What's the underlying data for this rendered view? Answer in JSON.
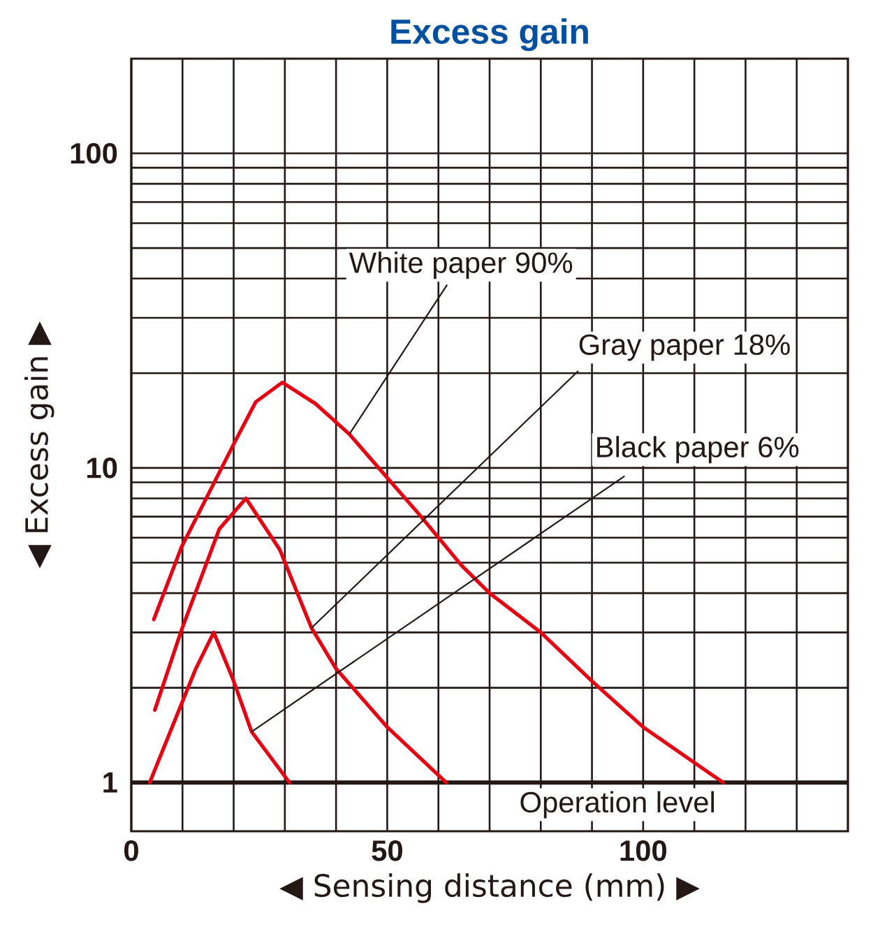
{
  "chart_data": {
    "type": "line",
    "title": "Excess gain",
    "xlabel": "◀ Sensing distance (mm) ▶",
    "ylabel": "◀ Excess gain ▶",
    "log": "y",
    "grid": true,
    "marker": "none",
    "line_style": "solid",
    "xlim": [
      0,
      140
    ],
    "ylim": [
      0.7,
      200
    ],
    "xticks": [
      0,
      {
        "value": 10,
        "label": null
      },
      {
        "value": 20,
        "label": null
      },
      {
        "value": 30,
        "label": null
      },
      {
        "value": 40,
        "label": null
      },
      50,
      {
        "value": 60,
        "label": null
      },
      {
        "value": 70,
        "label": null
      },
      {
        "value": 80,
        "label": null
      },
      {
        "value": 90,
        "label": null
      },
      100,
      {
        "value": 110,
        "label": null
      },
      {
        "value": 120,
        "label": null
      },
      {
        "value": 130,
        "label": null
      }
    ],
    "yticks": [
      1,
      {
        "value": 2,
        "label": null
      },
      {
        "value": 3,
        "label": null
      },
      {
        "value": 4,
        "label": null
      },
      {
        "value": 5,
        "label": null
      },
      {
        "value": 6,
        "label": null
      },
      {
        "value": 7,
        "label": null
      },
      {
        "value": 8,
        "label": null
      },
      {
        "value": 9,
        "label": null
      },
      10,
      {
        "value": 20,
        "label": null
      },
      {
        "value": 30,
        "label": null
      },
      {
        "value": 40,
        "label": null
      },
      {
        "value": 50,
        "label": null
      },
      {
        "value": 60,
        "label": null
      },
      {
        "value": 70,
        "label": null
      },
      {
        "value": 80,
        "label": null
      },
      {
        "value": 90,
        "label": null
      },
      100
    ],
    "ref_lines": [
      {
        "axis": "y",
        "value": 1,
        "label": "Operation level",
        "color": "#231815"
      }
    ],
    "series": [
      {
        "name": "White paper 90%",
        "color": "#e60012",
        "x": [
          4.4,
          9.8,
          20,
          24.3,
          29.5,
          36,
          42.6,
          50,
          56.3,
          64.5,
          70,
          80,
          90,
          100,
          115.6
        ],
        "values": [
          3.3,
          5.6,
          11.9,
          16.2,
          18.7,
          16,
          12.8,
          9.3,
          7.1,
          4.9,
          4.0,
          3.0,
          2.1,
          1.5,
          1.0
        ]
      },
      {
        "name": "Gray paper 18%",
        "color": "#e60012",
        "x": [
          4.6,
          9.8,
          17.2,
          22.4,
          29,
          35.2,
          40,
          50,
          61.5
        ],
        "values": [
          1.7,
          3.05,
          6.4,
          8.0,
          5.5,
          3.1,
          2.3,
          1.5,
          1.0
        ]
      },
      {
        "name": "Black paper 6%",
        "color": "#e60012",
        "x": [
          3.6,
          9,
          12.6,
          16.1,
          20,
          23.5,
          30.9
        ],
        "values": [
          1.0,
          1.65,
          2.3,
          3.0,
          2.1,
          1.45,
          1.0
        ]
      }
    ]
  }
}
